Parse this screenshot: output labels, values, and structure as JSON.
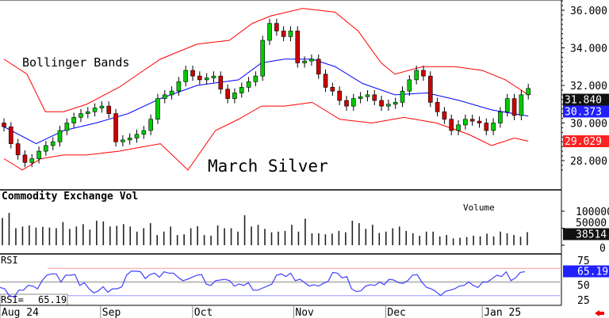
{
  "chart_data": {
    "type": "candlestick",
    "title": "March Silver",
    "indicator_label": "Bollinger Bands",
    "price_axis": {
      "ticks": [
        "36.000",
        "34.000",
        "32.000",
        "30.000",
        "28.000"
      ],
      "values": [
        36,
        34,
        32,
        30,
        28
      ],
      "range": [
        27.4,
        36.5
      ]
    },
    "last_labels": {
      "close": "31.840",
      "mid": "30.373",
      "lower": "29.029"
    },
    "closes": [
      29.8,
      28.9,
      28.3,
      27.9,
      28.1,
      28.5,
      28.8,
      29.0,
      29.6,
      30.0,
      30.3,
      30.5,
      30.6,
      30.8,
      30.9,
      30.5,
      29.0,
      29.1,
      29.2,
      29.4,
      29.6,
      30.2,
      31.3,
      31.5,
      31.7,
      32.2,
      32.8,
      32.5,
      32.3,
      32.4,
      32.5,
      31.8,
      31.3,
      31.6,
      31.9,
      32.2,
      32.5,
      34.4,
      35.3,
      34.9,
      34.6,
      34.9,
      33.2,
      33.3,
      33.4,
      32.6,
      31.9,
      31.7,
      31.2,
      30.9,
      31.3,
      31.4,
      31.5,
      31.2,
      30.9,
      31.0,
      31.1,
      31.7,
      32.3,
      32.8,
      32.5,
      31.1,
      30.6,
      30.2,
      29.6,
      29.9,
      30.2,
      30.1,
      30.0,
      29.6,
      30.0,
      30.6,
      31.3,
      30.4,
      31.5,
      31.84
    ],
    "bands": {
      "upper": [
        [
          0,
          33.4
        ],
        [
          5,
          32.6
        ],
        [
          9,
          30.6
        ],
        [
          13,
          30.6
        ],
        [
          18,
          31.0
        ],
        [
          25,
          31.9
        ],
        [
          34,
          33.4
        ],
        [
          42,
          34.2
        ],
        [
          49,
          34.4
        ],
        [
          54,
          35.3
        ],
        [
          58,
          35.7
        ],
        [
          65,
          36.1
        ],
        [
          72,
          35.9
        ],
        [
          77,
          34.9
        ],
        [
          82,
          33.2
        ],
        [
          85,
          32.6
        ],
        [
          91,
          33.0
        ],
        [
          98,
          33.0
        ],
        [
          104,
          32.8
        ],
        [
          109,
          32.3
        ],
        [
          114,
          31.5
        ]
      ],
      "middle": [
        [
          0,
          29.8
        ],
        [
          7,
          28.9
        ],
        [
          13,
          29.6
        ],
        [
          20,
          30.0
        ],
        [
          27,
          30.5
        ],
        [
          34,
          31.3
        ],
        [
          42,
          32.0
        ],
        [
          51,
          32.3
        ],
        [
          56,
          33.2
        ],
        [
          61,
          33.4
        ],
        [
          67,
          33.4
        ],
        [
          72,
          33.0
        ],
        [
          78,
          32.1
        ],
        [
          85,
          31.5
        ],
        [
          92,
          31.6
        ],
        [
          99,
          31.2
        ],
        [
          106,
          30.7
        ],
        [
          114,
          30.37
        ]
      ],
      "lower": [
        [
          0,
          28.1
        ],
        [
          4,
          27.5
        ],
        [
          8,
          28.1
        ],
        [
          13,
          28.3
        ],
        [
          18,
          28.3
        ],
        [
          25,
          28.5
        ],
        [
          34,
          28.9
        ],
        [
          40,
          27.5
        ],
        [
          46,
          29.6
        ],
        [
          51,
          30.2
        ],
        [
          56,
          30.9
        ],
        [
          61,
          30.9
        ],
        [
          67,
          31.1
        ],
        [
          73,
          30.2
        ],
        [
          80,
          30.0
        ],
        [
          87,
          30.3
        ],
        [
          94,
          30.0
        ],
        [
          101,
          29.4
        ],
        [
          106,
          28.8
        ],
        [
          111,
          29.2
        ],
        [
          114,
          29.03
        ]
      ]
    },
    "volume": {
      "title": "Commodity Exchange Vol",
      "label": "Volume",
      "ticks": [
        "100000",
        "50000",
        "0"
      ],
      "last": "38514",
      "values": [
        80000,
        95000,
        50000,
        55000,
        58000,
        52000,
        54000,
        52000,
        50000,
        68000,
        48000,
        55000,
        62000,
        46000,
        72000,
        70000,
        55000,
        57000,
        62000,
        55000,
        40000,
        50000,
        65000,
        30000,
        40000,
        55000,
        30000,
        32000,
        50000,
        56000,
        30000,
        28000,
        58000,
        50000,
        50000,
        40000,
        88000,
        55000,
        60000,
        48000,
        38000,
        40000,
        42000,
        60000,
        40000,
        78000,
        35000,
        35000,
        32000,
        34000,
        42000,
        38000,
        72000,
        65000,
        48000,
        60000,
        36000,
        40000,
        50000,
        55000,
        42000,
        35000,
        28000,
        40000,
        40000,
        26000,
        30000,
        20000,
        22000,
        24000,
        28000,
        26000,
        34000,
        26000,
        40000,
        35000,
        30000,
        25000,
        38514
      ]
    },
    "rsi": {
      "title": "RSI",
      "readout_label": "RSI=",
      "readout_value": "65.19",
      "last": "65.19",
      "ticks": [
        "75",
        "50",
        "25"
      ],
      "levels": [
        70,
        50,
        30
      ],
      "values": [
        42,
        40,
        30,
        28,
        38,
        38,
        45,
        44,
        40,
        52,
        60,
        62,
        62,
        50,
        60,
        60,
        61,
        45,
        49,
        40,
        34,
        37,
        43,
        35,
        40,
        40,
        43,
        60,
        66,
        66,
        65,
        55,
        61,
        63,
        57,
        65,
        63,
        63,
        57,
        52,
        54,
        57,
        60,
        61,
        47,
        45,
        52,
        53,
        54,
        52,
        44,
        47,
        45,
        49,
        38,
        38,
        41,
        44,
        47,
        60,
        62,
        58,
        63,
        52,
        54,
        49,
        44,
        46,
        44,
        48,
        51,
        64,
        63,
        56,
        58,
        40,
        36,
        37,
        44,
        46,
        45,
        50,
        46,
        54,
        53,
        49,
        48,
        52,
        60,
        61,
        50,
        42,
        40,
        36,
        30,
        36,
        38,
        40,
        44,
        45,
        50,
        45,
        42,
        50,
        50,
        55,
        60,
        58,
        65,
        52,
        56,
        64,
        65.19
      ]
    },
    "x_axis": {
      "labels": [
        "Aug 24",
        "Sep",
        "Oct",
        "Nov",
        "Dec",
        "Jan 25"
      ],
      "positions": [
        0,
        21,
        41,
        63,
        83,
        104
      ]
    }
  },
  "colors": {
    "up": "#00cc00",
    "down": "#cc0000",
    "band": "#ff0000",
    "mid": "#0000ff",
    "rsi": "#4040ff"
  }
}
